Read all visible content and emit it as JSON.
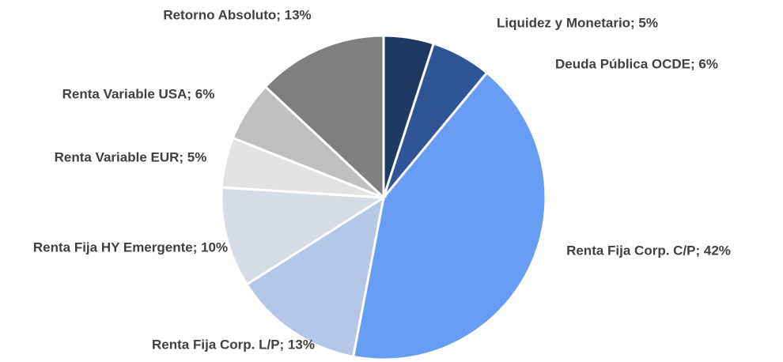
{
  "chart_data": {
    "type": "pie",
    "values": [
      5,
      6,
      42,
      13,
      10,
      5,
      6,
      13
    ],
    "value_labels": [
      "Liquidez y Monetario; 5%",
      "Deuda Pública OCDE; 6%",
      "Renta Fija Corp. C/P; 42%",
      "Renta Fija Corp. L/P; 13%",
      "Renta Fija HY Emergente; 10%",
      "Renta Variable EUR; 5%",
      "Renta Variable USA; 6%",
      "Retorno Absoluto; 13%"
    ],
    "colors": [
      "#203864",
      "#2f5597",
      "#679df3",
      "#b4c7e7",
      "#d6dce5",
      "#e2e2e2",
      "#bfbfbf",
      "#7f7f7f"
    ]
  }
}
